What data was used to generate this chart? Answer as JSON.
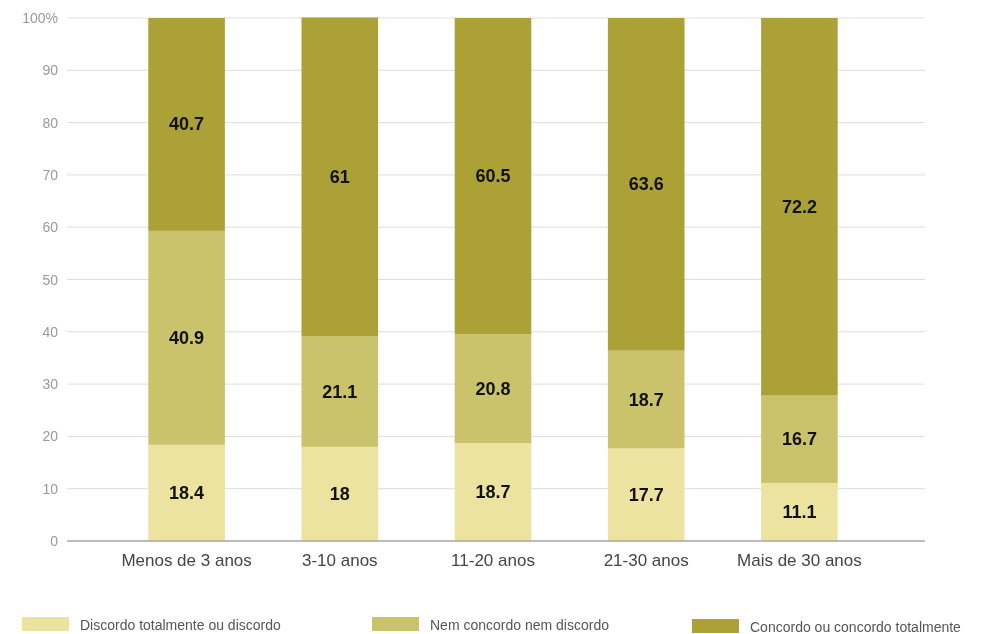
{
  "chart_data": {
    "type": "bar",
    "stacked": true,
    "categories": [
      "Menos de 3 anos",
      "3-10 anos",
      "11-20 anos",
      "21-30 anos",
      "Mais de 30 anos"
    ],
    "series": [
      {
        "name": "Discordo totalmente ou discordo",
        "color": "#ede3a0",
        "values": [
          18.4,
          18,
          18.7,
          17.7,
          11.1
        ]
      },
      {
        "name": "Nem concordo nem discordo",
        "color": "#cbc26c",
        "values": [
          40.9,
          21.1,
          20.8,
          18.7,
          16.7
        ]
      },
      {
        "name": "Concordo ou concordo totalmente",
        "color": "#aca136",
        "values": [
          40.7,
          61,
          60.5,
          63.6,
          72.2
        ]
      }
    ],
    "ylim": [
      0,
      100
    ],
    "yticks": [
      0,
      10,
      20,
      30,
      40,
      50,
      60,
      70,
      80,
      90,
      {
        "value": 100,
        "label": "100%"
      }
    ],
    "grid": "y",
    "legend": "bottom",
    "data_labels": true
  }
}
